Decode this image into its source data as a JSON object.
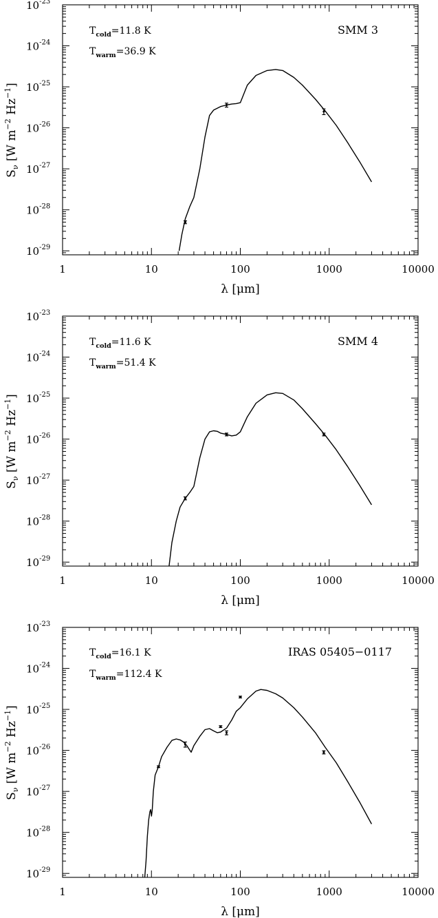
{
  "chart_data": [
    {
      "type": "line",
      "source_label": "SMM 3",
      "xlabel": "λ [μm]",
      "ylabel": "S_ν [W m^-2 Hz^-1]",
      "x_scale": "log",
      "y_scale": "log",
      "xlim": [
        1,
        10000
      ],
      "ylim": [
        8e-30,
        1e-23
      ],
      "x_ticks": [
        "1",
        "10",
        "100",
        "1000",
        "10000"
      ],
      "y_tick_exponents": [
        "-23",
        "-24",
        "-25",
        "-26",
        "-27",
        "-28",
        "-29"
      ],
      "annotations": {
        "t_cold": {
          "base": "T",
          "sub": "cold",
          "value": "=11.8 K"
        },
        "t_warm": {
          "base": "T",
          "sub": "warm",
          "value": "=36.9 K"
        }
      },
      "series": [
        {
          "style": "line",
          "x": [
            20.5,
            22,
            24,
            27,
            30,
            35,
            40,
            45,
            50,
            60,
            70,
            80,
            90,
            100,
            120,
            150,
            200,
            250,
            300,
            400,
            500,
            700,
            900,
            1200,
            1600,
            2200,
            3000
          ],
          "y": [
            1e-29,
            2.5e-29,
            6e-29,
            1.2e-28,
            2e-28,
            1e-27,
            6e-27,
            2e-26,
            2.7e-26,
            3.3e-26,
            3.6e-26,
            3.8e-26,
            3.9e-26,
            4.1e-26,
            1.1e-25,
            1.9e-25,
            2.5e-25,
            2.65e-25,
            2.5e-25,
            1.7e-25,
            1.1e-25,
            5e-26,
            2.6e-26,
            1.15e-26,
            4.5e-27,
            1.5e-27,
            4.8e-28
          ]
        },
        {
          "style": "points",
          "x": [
            24,
            70,
            870
          ],
          "y": [
            5e-29,
            3.6e-26,
            2.5e-26
          ],
          "err_low": [
            4.6e-29,
            3.2e-26,
            2.1e-26
          ],
          "err_high": [
            5.4e-29,
            4e-26,
            2.9e-26
          ]
        }
      ]
    },
    {
      "type": "line",
      "source_label": "SMM 4",
      "xlabel": "λ [μm]",
      "ylabel": "S_ν [W m^-2 Hz^-1]",
      "x_scale": "log",
      "y_scale": "log",
      "xlim": [
        1,
        10000
      ],
      "ylim": [
        8e-30,
        1e-23
      ],
      "x_ticks": [
        "1",
        "10",
        "100",
        "1000",
        "10000"
      ],
      "y_tick_exponents": [
        "-23",
        "-24",
        "-25",
        "-26",
        "-27",
        "-28",
        "-29"
      ],
      "annotations": {
        "t_cold": {
          "base": "T",
          "sub": "cold",
          "value": "=11.6 K"
        },
        "t_warm": {
          "base": "T",
          "sub": "warm",
          "value": "=51.4 K"
        }
      },
      "series": [
        {
          "style": "line",
          "x": [
            15.8,
            17,
            19,
            21,
            24,
            27,
            30,
            35,
            40,
            45,
            50,
            55,
            60,
            70,
            80,
            90,
            100,
            120,
            150,
            200,
            250,
            300,
            400,
            500,
            700,
            900,
            1200,
            1600,
            2200,
            3000
          ],
          "y": [
            8e-30,
            3e-29,
            1e-28,
            2.2e-28,
            3.6e-28,
            5e-28,
            7e-28,
            3.5e-27,
            1e-26,
            1.5e-26,
            1.6e-26,
            1.55e-26,
            1.4e-26,
            1.3e-26,
            1.2e-26,
            1.25e-26,
            1.5e-26,
            3.5e-26,
            7.5e-26,
            1.2e-25,
            1.35e-25,
            1.3e-25,
            9e-26,
            5.5e-26,
            2.4e-26,
            1.25e-26,
            5.5e-27,
            2.2e-27,
            7.5e-28,
            2.5e-28
          ]
        },
        {
          "style": "points",
          "x": [
            24,
            70,
            870
          ],
          "y": [
            3.6e-28,
            1.3e-26,
            1.3e-26
          ],
          "err_low": [
            3.3e-28,
            1.2e-26,
            1.2e-26
          ],
          "err_high": [
            3.9e-28,
            1.4e-26,
            1.4e-26
          ]
        }
      ]
    },
    {
      "type": "line",
      "source_label": "IRAS 05405−0117",
      "xlabel": "λ [μm]",
      "ylabel": "S_ν [W m^-2 Hz^-1]",
      "x_scale": "log",
      "y_scale": "log",
      "xlim": [
        1,
        10000
      ],
      "ylim": [
        8e-30,
        1e-23
      ],
      "x_ticks": [
        "1",
        "10",
        "100",
        "1000",
        "10000"
      ],
      "y_tick_exponents": [
        "-23",
        "-24",
        "-25",
        "-26",
        "-27",
        "-28",
        "-29"
      ],
      "annotations": {
        "t_cold": {
          "base": "T",
          "sub": "cold",
          "value": "=16.1 K"
        },
        "t_warm": {
          "base": "T",
          "sub": "warm",
          "value": "=112.4 K"
        }
      },
      "series": [
        {
          "style": "line",
          "x": [
            8.4,
            8.7,
            9.0,
            9.3,
            9.6,
            9.8,
            10.0,
            10.2,
            10.5,
            11,
            12,
            13,
            15,
            17,
            19,
            21,
            23,
            25,
            28,
            30,
            35,
            40,
            45,
            50,
            55,
            60,
            70,
            80,
            90,
            100,
            120,
            150,
            170,
            200,
            250,
            300,
            400,
            500,
            700,
            900,
            1200,
            1600,
            2200,
            3000
          ],
          "y": [
            8e-30,
            2e-29,
            8e-29,
            2e-28,
            3.2e-28,
            3.6e-28,
            2.5e-28,
            3.5e-28,
            1e-27,
            2.5e-27,
            4e-27,
            7e-27,
            1.2e-26,
            1.75e-26,
            1.9e-26,
            1.8e-26,
            1.6e-26,
            1.3e-26,
            9e-27,
            1.3e-26,
            2.2e-26,
            3.2e-26,
            3.4e-26,
            3e-26,
            2.7e-26,
            2.8e-26,
            3.5e-26,
            5.5e-26,
            9e-26,
            1.1e-25,
            1.8e-25,
            2.8e-25,
            3.05e-25,
            2.9e-25,
            2.4e-25,
            1.9e-25,
            1.1e-25,
            6.5e-26,
            2.7e-26,
            1.2e-26,
            5e-27,
            1.8e-27,
            5.5e-28,
            1.6e-28
          ]
        },
        {
          "style": "points",
          "x": [
            12,
            24,
            60,
            70,
            100,
            870
          ],
          "y": [
            4e-27,
            1.4e-26,
            3.8e-26,
            2.7e-26,
            2e-25,
            9e-27
          ],
          "err_low": [
            3.8e-27,
            1.2e-26,
            3.6e-26,
            2.4e-26,
            1.9e-25,
            8.2e-27
          ],
          "err_high": [
            4.2e-27,
            1.6e-26,
            4e-26,
            3e-26,
            2.1e-25,
            9.8e-27
          ]
        }
      ]
    }
  ]
}
